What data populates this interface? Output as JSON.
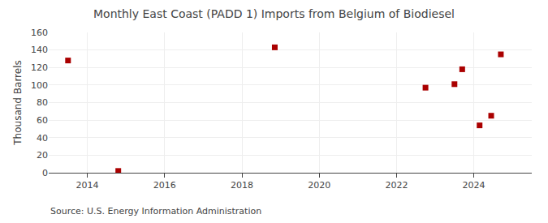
{
  "chart_data": {
    "type": "scatter",
    "title": "Monthly East Coast (PADD 1) Imports from Belgium of Biodiesel",
    "ylabel": "Thousand Barrels",
    "annotations": [
      "Source: U.S. Energy Information Administration"
    ],
    "x": [
      2013.5,
      2014.8,
      2018.85,
      2022.75,
      2023.5,
      2023.7,
      2024.15,
      2024.45,
      2024.7
    ],
    "values": [
      128,
      2,
      143,
      97,
      101,
      118,
      54,
      65,
      135
    ],
    "color": "#aa0000",
    "marker": "square",
    "xlim": [
      2013.0,
      2025.5
    ],
    "xticks": [
      2014,
      2016,
      2018,
      2020,
      2022,
      2024
    ],
    "ylim": [
      0,
      160
    ],
    "yticks": [
      0,
      20,
      40,
      60,
      80,
      100,
      120,
      140,
      160
    ],
    "grid": true
  }
}
